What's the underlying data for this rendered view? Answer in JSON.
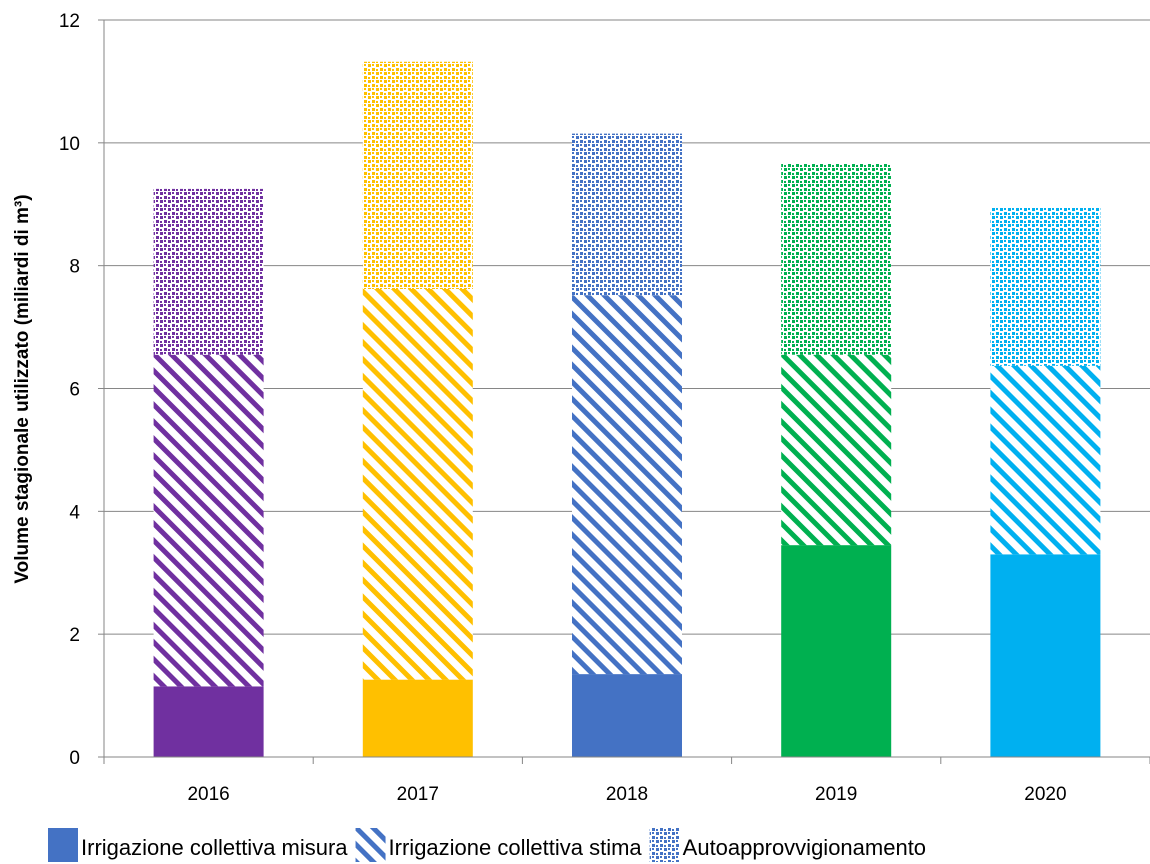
{
  "chart_data": {
    "type": "bar",
    "stacked": true,
    "categories": [
      "2016",
      "2017",
      "2018",
      "2019",
      "2020"
    ],
    "category_colors": [
      "#7030A0",
      "#FFC000",
      "#4472C4",
      "#00B050",
      "#00B0F0"
    ],
    "series": [
      {
        "name": "Irrigazione collettiva misura",
        "pattern": "solid",
        "values": [
          1.15,
          1.26,
          1.35,
          3.45,
          3.3
        ]
      },
      {
        "name": "Irrigazione collettiva stima",
        "pattern": "diagonal-stripes",
        "values": [
          5.4,
          6.36,
          6.17,
          3.1,
          3.07
        ]
      },
      {
        "name": "Autoapprovvigionamento",
        "pattern": "dots",
        "values": [
          2.7,
          3.7,
          2.63,
          3.12,
          2.58
        ]
      }
    ],
    "xlabel": "",
    "ylabel": "Volume stagionale utilizzato (miliardi di m³)",
    "ylim": [
      0,
      12
    ],
    "yticks": [
      0,
      2,
      4,
      6,
      8,
      10,
      12
    ],
    "grid": true,
    "legend_position": "bottom",
    "legend_color": "#4472C4"
  }
}
